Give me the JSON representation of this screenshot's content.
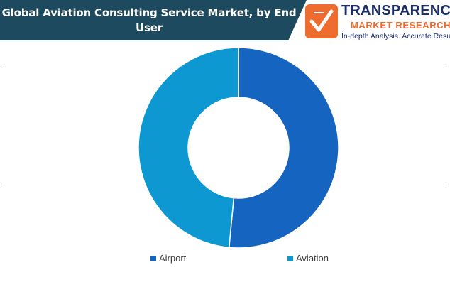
{
  "header": {
    "title": "Global Aviation Consulting Service Market, by End User"
  },
  "logo": {
    "brand_line1": "TRANSPARENCY",
    "brand_line2": "MARKET RESEARCH",
    "tagline": "In-depth Analysis. Accurate Results",
    "icon": "check-mark-logo-icon"
  },
  "colors": {
    "banner": "#1d4a5e",
    "airport": "#1565c0",
    "aviation": "#0d98d2",
    "logo_orange": "#ef6c2f",
    "logo_navy": "#1c2f6b"
  },
  "chart_data": {
    "type": "pie",
    "donut": true,
    "title": "Global Aviation Consulting Service Market, by End User",
    "categories": [
      "Airport",
      "Aviation"
    ],
    "values": [
      51.5,
      48.5
    ],
    "unit": "%",
    "legend_position": "bottom",
    "data_labels": false
  }
}
